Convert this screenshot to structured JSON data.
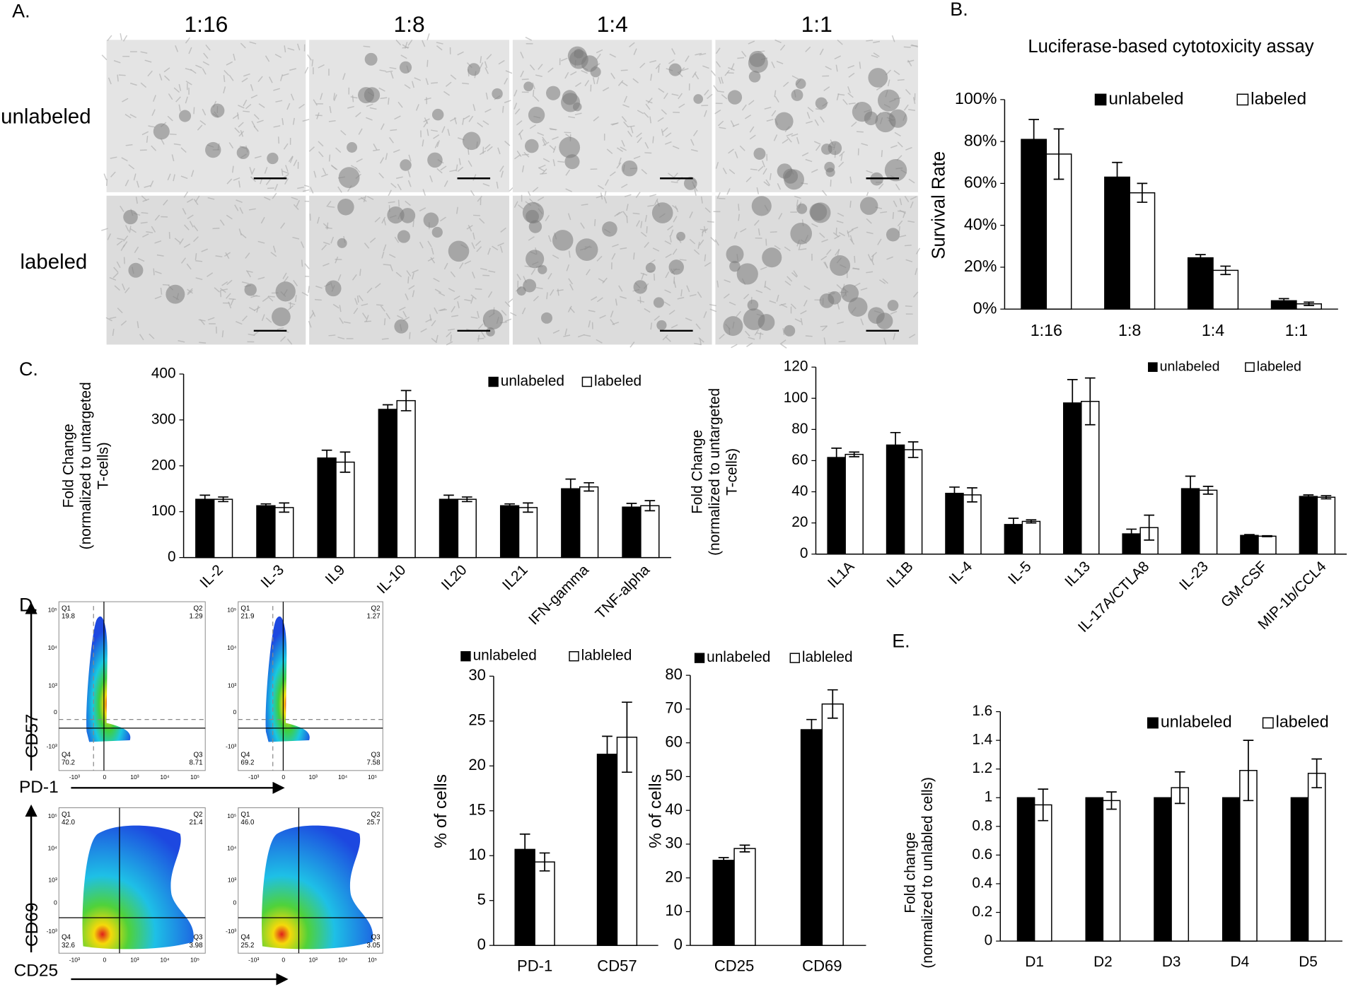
{
  "panel_labels": [
    "A.",
    "B.",
    "C.",
    "D.",
    "E."
  ],
  "microscopy": {
    "columns": [
      "1:16",
      "1:8",
      "1:4",
      "1:1"
    ],
    "rows": [
      "unlabeled",
      "labeled"
    ]
  },
  "flow": {
    "y_axis_ticks": [
      "10⁵",
      "10⁴",
      "10³",
      "0",
      "-10³"
    ],
    "x_axis_ticks": [
      "-10³",
      "0",
      "10³",
      "10⁴",
      "10⁵"
    ],
    "axis_labels": {
      "top_y": "CD57",
      "top_x": "PD-1",
      "bottom_y": "CD69",
      "bottom_x": "CD25"
    },
    "plots": [
      {
        "quadrants": [
          {
            "name": "Q1",
            "value": "19.8"
          },
          {
            "name": "Q2",
            "value": "1.29"
          },
          {
            "name": "Q3",
            "value": "8.71"
          },
          {
            "name": "Q4",
            "value": "70.2"
          }
        ]
      },
      {
        "quadrants": [
          {
            "name": "Q1",
            "value": "21.9"
          },
          {
            "name": "Q2",
            "value": "1.27"
          },
          {
            "name": "Q3",
            "value": "7.58"
          },
          {
            "name": "Q4",
            "value": "69.2"
          }
        ]
      },
      {
        "quadrants": [
          {
            "name": "Q1",
            "value": "42.0"
          },
          {
            "name": "Q2",
            "value": "21.4"
          },
          {
            "name": "Q3",
            "value": "3.98"
          },
          {
            "name": "Q4",
            "value": "32.6"
          }
        ]
      },
      {
        "quadrants": [
          {
            "name": "Q1",
            "value": "46.0"
          },
          {
            "name": "Q2",
            "value": "25.7"
          },
          {
            "name": "Q3",
            "value": "3.05"
          },
          {
            "name": "Q4",
            "value": "25.2"
          }
        ]
      }
    ]
  },
  "chart_data": [
    {
      "type": "bar",
      "title": "Luciferase-based cytotoxicity assay",
      "ylabel": [
        "Survival Rate"
      ],
      "categories": [
        "1:16",
        "1:8",
        "1:4",
        "1:1"
      ],
      "series": [
        {
          "name": "unlabeled",
          "color": "#000000",
          "values": [
            81,
            63,
            24.5,
            4
          ],
          "error": [
            9.5,
            7,
            1.5,
            1
          ]
        },
        {
          "name": "labeled",
          "color": "#ffffff",
          "values": [
            74,
            55.5,
            18.5,
            2.5
          ],
          "error": [
            12,
            4.5,
            2,
            0.8
          ]
        }
      ],
      "ylim": [
        0,
        100
      ],
      "yticks": [
        {
          "value": 0,
          "label": "0%"
        },
        {
          "value": 20,
          "label": "20%"
        },
        {
          "value": 40,
          "label": "40%"
        },
        {
          "value": 60,
          "label": "60%"
        },
        {
          "value": 80,
          "label": "80%"
        },
        {
          "value": 100,
          "label": "100%"
        }
      ]
    },
    {
      "type": "bar",
      "ylabel": [
        "Fold Change",
        "(normalized to untargeted",
        "T-cells)"
      ],
      "categories": [
        "IL-2",
        "IL-3",
        "IL9",
        "IL-10",
        "IL20",
        "IL21",
        "IFN-gamma",
        "TNF-alpha"
      ],
      "series": [
        {
          "name": "unlabeled",
          "color": "#000000",
          "values": [
            127,
            113,
            217,
            323,
            127,
            113,
            150,
            110
          ],
          "error": [
            9,
            4,
            17,
            10,
            9,
            4,
            21,
            8
          ]
        },
        {
          "name": "labeled",
          "color": "#ffffff",
          "values": [
            127,
            109,
            208,
            342,
            127,
            109,
            154,
            113
          ],
          "error": [
            5,
            10,
            22,
            22,
            5,
            10,
            9,
            11
          ]
        }
      ],
      "ylim": [
        0,
        400
      ],
      "yticks": [
        0,
        100,
        200,
        300,
        400
      ]
    },
    {
      "type": "bar",
      "ylabel": [
        "Fold Change",
        "(normalized to untargeted",
        "T-cells)"
      ],
      "categories": [
        "IL1A",
        "IL1B",
        "IL-4",
        "IL-5",
        "IL13",
        "IL-17A/CTLA8",
        "IL-23",
        "GM-CSF",
        "MIP-1b/CCL4"
      ],
      "series": [
        {
          "name": "unlabeled",
          "color": "#000000",
          "values": [
            62,
            70,
            39,
            19,
            97,
            13,
            42,
            12,
            37
          ],
          "error": [
            6,
            8,
            4,
            4,
            15,
            3,
            8,
            0.5,
            1
          ]
        },
        {
          "name": "labeled",
          "color": "#ffffff",
          "values": [
            64,
            67,
            38,
            21,
            98,
            17,
            41,
            11.5,
            36.5
          ],
          "error": [
            1.5,
            5,
            4.5,
            1,
            15,
            8,
            2.5,
            0.3,
            1
          ]
        }
      ],
      "ylim": [
        0,
        120
      ],
      "yticks": [
        0,
        20,
        40,
        60,
        80,
        100,
        120
      ]
    },
    {
      "type": "bar",
      "ylabel": [
        "% of cells"
      ],
      "categories": [
        "PD-1",
        "CD57"
      ],
      "series": [
        {
          "name": "unlabeled",
          "color": "#000000",
          "values": [
            10.7,
            21.3
          ],
          "error": [
            1.7,
            2
          ]
        },
        {
          "name": "lableled",
          "color": "#ffffff",
          "values": [
            9.3,
            23.2
          ],
          "error": [
            1,
            3.9
          ]
        }
      ],
      "ylim": [
        0,
        30
      ],
      "yticks": [
        0,
        5,
        10,
        15,
        20,
        25,
        30
      ]
    },
    {
      "type": "bar",
      "ylabel": [
        "% of cells"
      ],
      "categories": [
        "CD25",
        "CD69"
      ],
      "series": [
        {
          "name": "unlabeled",
          "color": "#000000",
          "values": [
            25.2,
            63.9
          ],
          "error": [
            0.8,
            3
          ]
        },
        {
          "name": "lableled",
          "color": "#ffffff",
          "values": [
            28.7,
            71.5
          ],
          "error": [
            1,
            4.2
          ]
        }
      ],
      "ylim": [
        0,
        80
      ],
      "yticks": [
        0,
        10,
        20,
        30,
        40,
        50,
        60,
        70,
        80
      ]
    },
    {
      "type": "bar",
      "ylabel": [
        "Fold change",
        "(normalized to unlabled cells)"
      ],
      "categories": [
        "D1",
        "D2",
        "D3",
        "D4",
        "D5"
      ],
      "series": [
        {
          "name": "unlabeled",
          "color": "#000000",
          "values": [
            1,
            1,
            1,
            1,
            1
          ]
        },
        {
          "name": "labeled",
          "color": "#ffffff",
          "values": [
            0.95,
            0.98,
            1.07,
            1.19,
            1.17
          ],
          "error": [
            0.11,
            0.06,
            0.11,
            0.21,
            0.1
          ]
        }
      ],
      "ylim": [
        0,
        1.6
      ],
      "yticks": [
        0,
        0.2,
        0.4,
        0.6,
        0.8,
        1,
        1.2,
        1.4,
        1.6
      ]
    }
  ]
}
